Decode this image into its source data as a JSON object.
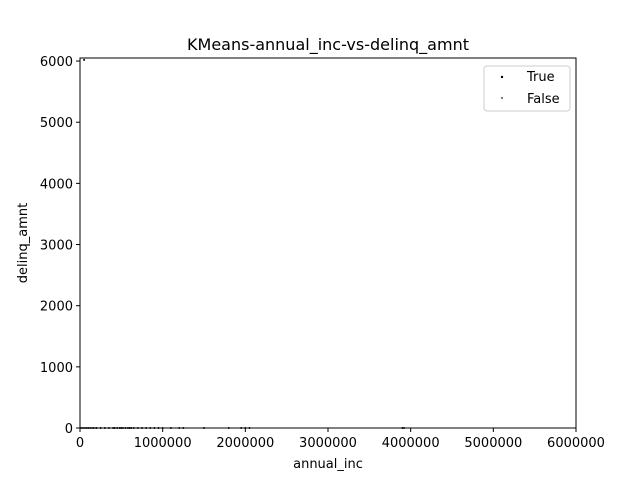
{
  "chart_data": {
    "type": "scatter",
    "title": "KMeans-annual_inc-vs-delinq_amnt",
    "xlabel": "annual_inc",
    "ylabel": "delinq_amnt",
    "xlim": [
      0,
      6000000
    ],
    "ylim": [
      0,
      6050
    ],
    "x_ticks": [
      0,
      1000000,
      2000000,
      3000000,
      4000000,
      5000000,
      6000000
    ],
    "x_tick_labels": [
      "0",
      "1000000",
      "2000000",
      "3000000",
      "4000000",
      "5000000",
      "6000000"
    ],
    "y_ticks": [
      0,
      1000,
      2000,
      3000,
      4000,
      5000,
      6000
    ],
    "y_tick_labels": [
      "0",
      "1000",
      "2000",
      "3000",
      "4000",
      "5000",
      "6000"
    ],
    "grid": false,
    "legend_position": "top-right",
    "legend": [
      "True",
      "False"
    ],
    "series": [
      {
        "name": "True",
        "color": "#000000",
        "x": [
          5000,
          15000,
          30000,
          45000,
          60000,
          80000,
          100000,
          130000,
          160000,
          200000,
          250000,
          300000,
          350000,
          400000,
          420000,
          450000,
          480000,
          500000,
          520000,
          550000,
          580000,
          600000,
          620000,
          650000,
          700000,
          750000,
          800000,
          850000,
          900000,
          950000,
          1000000,
          1100000,
          1200000,
          1250000,
          1500000,
          1800000,
          1950000,
          2000000,
          2050000,
          3900000,
          3920000,
          50000
        ],
        "y": [
          0,
          0,
          0,
          0,
          0,
          0,
          0,
          0,
          0,
          0,
          0,
          0,
          0,
          0,
          0,
          0,
          0,
          0,
          0,
          0,
          0,
          0,
          0,
          0,
          0,
          0,
          0,
          0,
          0,
          0,
          0,
          0,
          0,
          0,
          0,
          0,
          0,
          0,
          0,
          0,
          0,
          6020
        ]
      },
      {
        "name": "False",
        "color": "#808080",
        "x": [
          10000,
          25000,
          40000,
          55000,
          70000,
          90000,
          120000,
          150000,
          180000
        ],
        "y": [
          0,
          0,
          0,
          0,
          0,
          0,
          0,
          0,
          0
        ]
      }
    ]
  }
}
